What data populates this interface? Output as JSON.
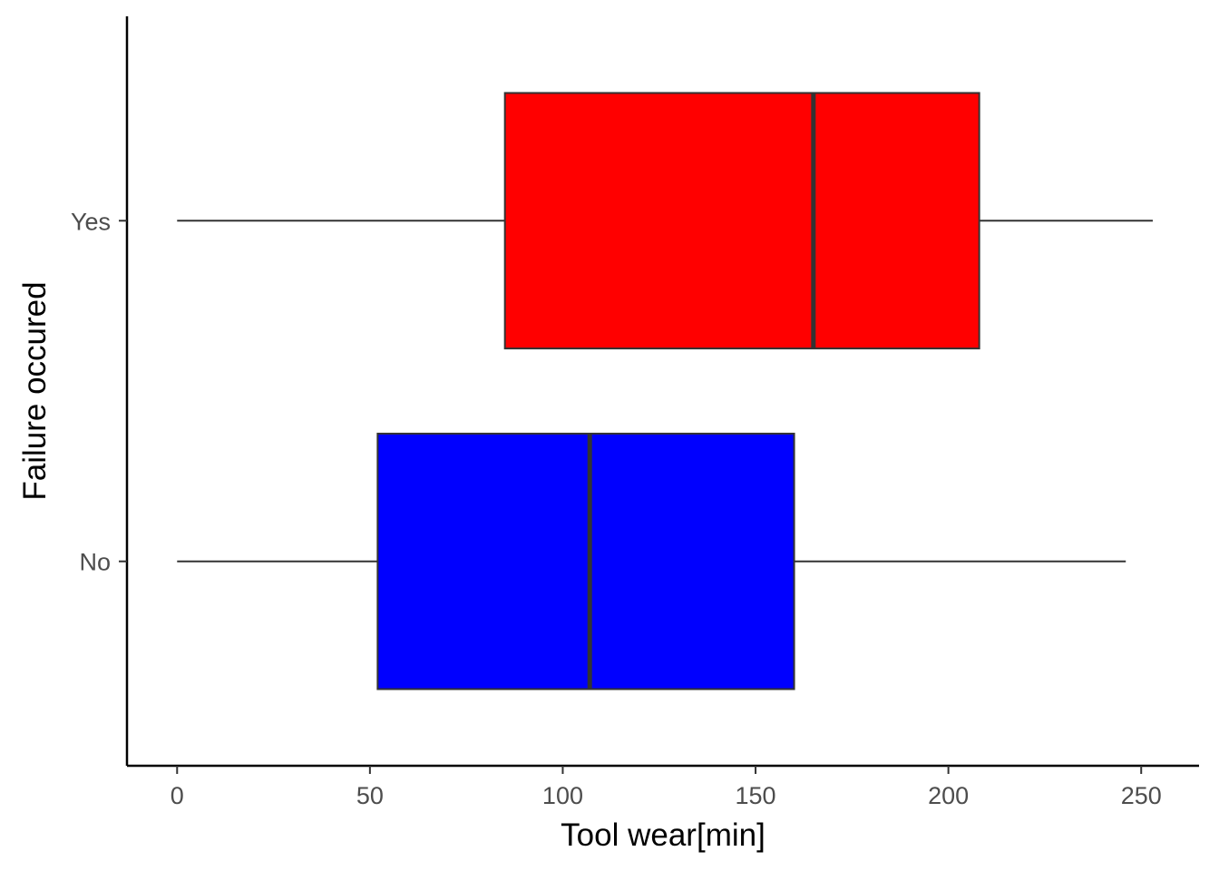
{
  "chart_data": {
    "type": "boxplot",
    "orientation": "horizontal",
    "title": "",
    "xlabel": "Tool wear[min]",
    "ylabel": "Failure occured",
    "xlim": [
      -13,
      265
    ],
    "xticks": [
      0,
      50,
      100,
      150,
      200,
      250
    ],
    "categories": [
      "No",
      "Yes"
    ],
    "series": [
      {
        "category": "No",
        "color": "#0000ff",
        "whisker_low": 0,
        "q1": 52,
        "median": 107,
        "q3": 160,
        "whisker_high": 246
      },
      {
        "category": "Yes",
        "color": "#ff0000",
        "whisker_low": 0,
        "q1": 85,
        "median": 165,
        "q3": 208,
        "whisker_high": 253
      }
    ],
    "grid": false,
    "legend": "none"
  }
}
